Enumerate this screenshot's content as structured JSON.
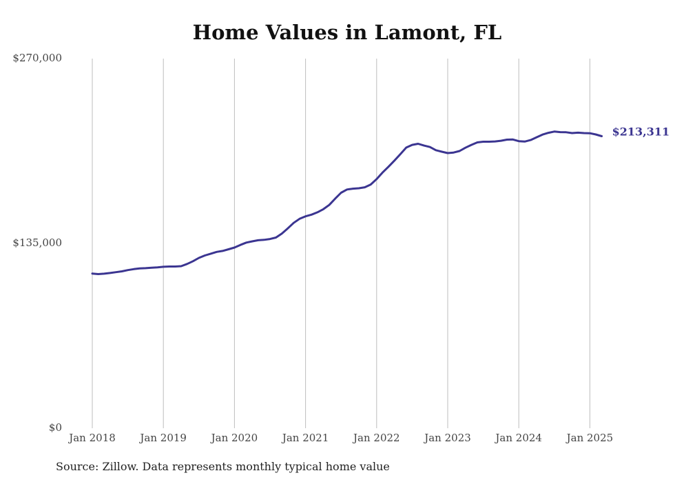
{
  "chart_data": {
    "type": "line",
    "title": "Home Values in Lamont, FL",
    "xlabel": "",
    "ylabel": "",
    "ylim": [
      0,
      270000
    ],
    "y_ticks": [
      "$0",
      "$135,000",
      "$270,000"
    ],
    "y_tick_values": [
      0,
      135000,
      270000
    ],
    "x_ticks": [
      "Jan 2018",
      "Jan 2019",
      "Jan 2020",
      "Jan 2021",
      "Jan 2022",
      "Jan 2023",
      "Jan 2024",
      "Jan 2025"
    ],
    "x_tick_values": [
      "2018-01",
      "2019-01",
      "2020-01",
      "2021-01",
      "2022-01",
      "2023-01",
      "2024-01",
      "2025-01"
    ],
    "grid": "vertical",
    "end_label": "$213,311",
    "line_color": "#3b3591",
    "series": [
      {
        "x": [
          "2018-01",
          "2018-02",
          "2018-03",
          "2018-04",
          "2018-05",
          "2018-06",
          "2018-07",
          "2018-08",
          "2018-09",
          "2018-10",
          "2018-11",
          "2018-12",
          "2019-01",
          "2019-02",
          "2019-03",
          "2019-04",
          "2019-05",
          "2019-06",
          "2019-07",
          "2019-08",
          "2019-09",
          "2019-10",
          "2019-11",
          "2019-12",
          "2020-01",
          "2020-02",
          "2020-03",
          "2020-04",
          "2020-05",
          "2020-06",
          "2020-07",
          "2020-08",
          "2020-09",
          "2020-10",
          "2020-11",
          "2020-12",
          "2021-01",
          "2021-02",
          "2021-03",
          "2021-04",
          "2021-05",
          "2021-06",
          "2021-07",
          "2021-08",
          "2021-09",
          "2021-10",
          "2021-11",
          "2021-12",
          "2022-01",
          "2022-02",
          "2022-03",
          "2022-04",
          "2022-05",
          "2022-06",
          "2022-07",
          "2022-08",
          "2022-09",
          "2022-10",
          "2022-11",
          "2022-12",
          "2023-01",
          "2023-02",
          "2023-03",
          "2023-04",
          "2023-05",
          "2023-06",
          "2023-07",
          "2023-08",
          "2023-09",
          "2023-10",
          "2023-11",
          "2023-12",
          "2024-01",
          "2024-02",
          "2024-03",
          "2024-04",
          "2024-05",
          "2024-06",
          "2024-07",
          "2024-08",
          "2024-09",
          "2024-10",
          "2024-11",
          "2024-12",
          "2025-01",
          "2025-02",
          "2025-03"
        ],
        "values": [
          113000,
          112600,
          112900,
          113400,
          114000,
          114600,
          115500,
          116200,
          116700,
          116900,
          117200,
          117500,
          117900,
          118100,
          118100,
          118400,
          120000,
          122000,
          124400,
          126200,
          127500,
          128800,
          129500,
          130700,
          132000,
          133900,
          135600,
          136500,
          137300,
          137600,
          138200,
          139300,
          142200,
          146000,
          150000,
          153000,
          154800,
          156000,
          157700,
          160000,
          163100,
          167700,
          172000,
          174400,
          175000,
          175300,
          176000,
          178000,
          182000,
          186800,
          191000,
          195500,
          200200,
          205000,
          207000,
          207800,
          206500,
          205400,
          203100,
          202000,
          201000,
          201400,
          202500,
          204900,
          207000,
          208800,
          209300,
          209300,
          209500,
          210000,
          210800,
          210900,
          209700,
          209400,
          210500,
          212500,
          214500,
          215800,
          216700,
          216300,
          216200,
          215600,
          215900,
          215600,
          215500,
          214600,
          213311
        ]
      }
    ]
  },
  "source_note": "Source: Zillow. Data represents monthly typical home value"
}
